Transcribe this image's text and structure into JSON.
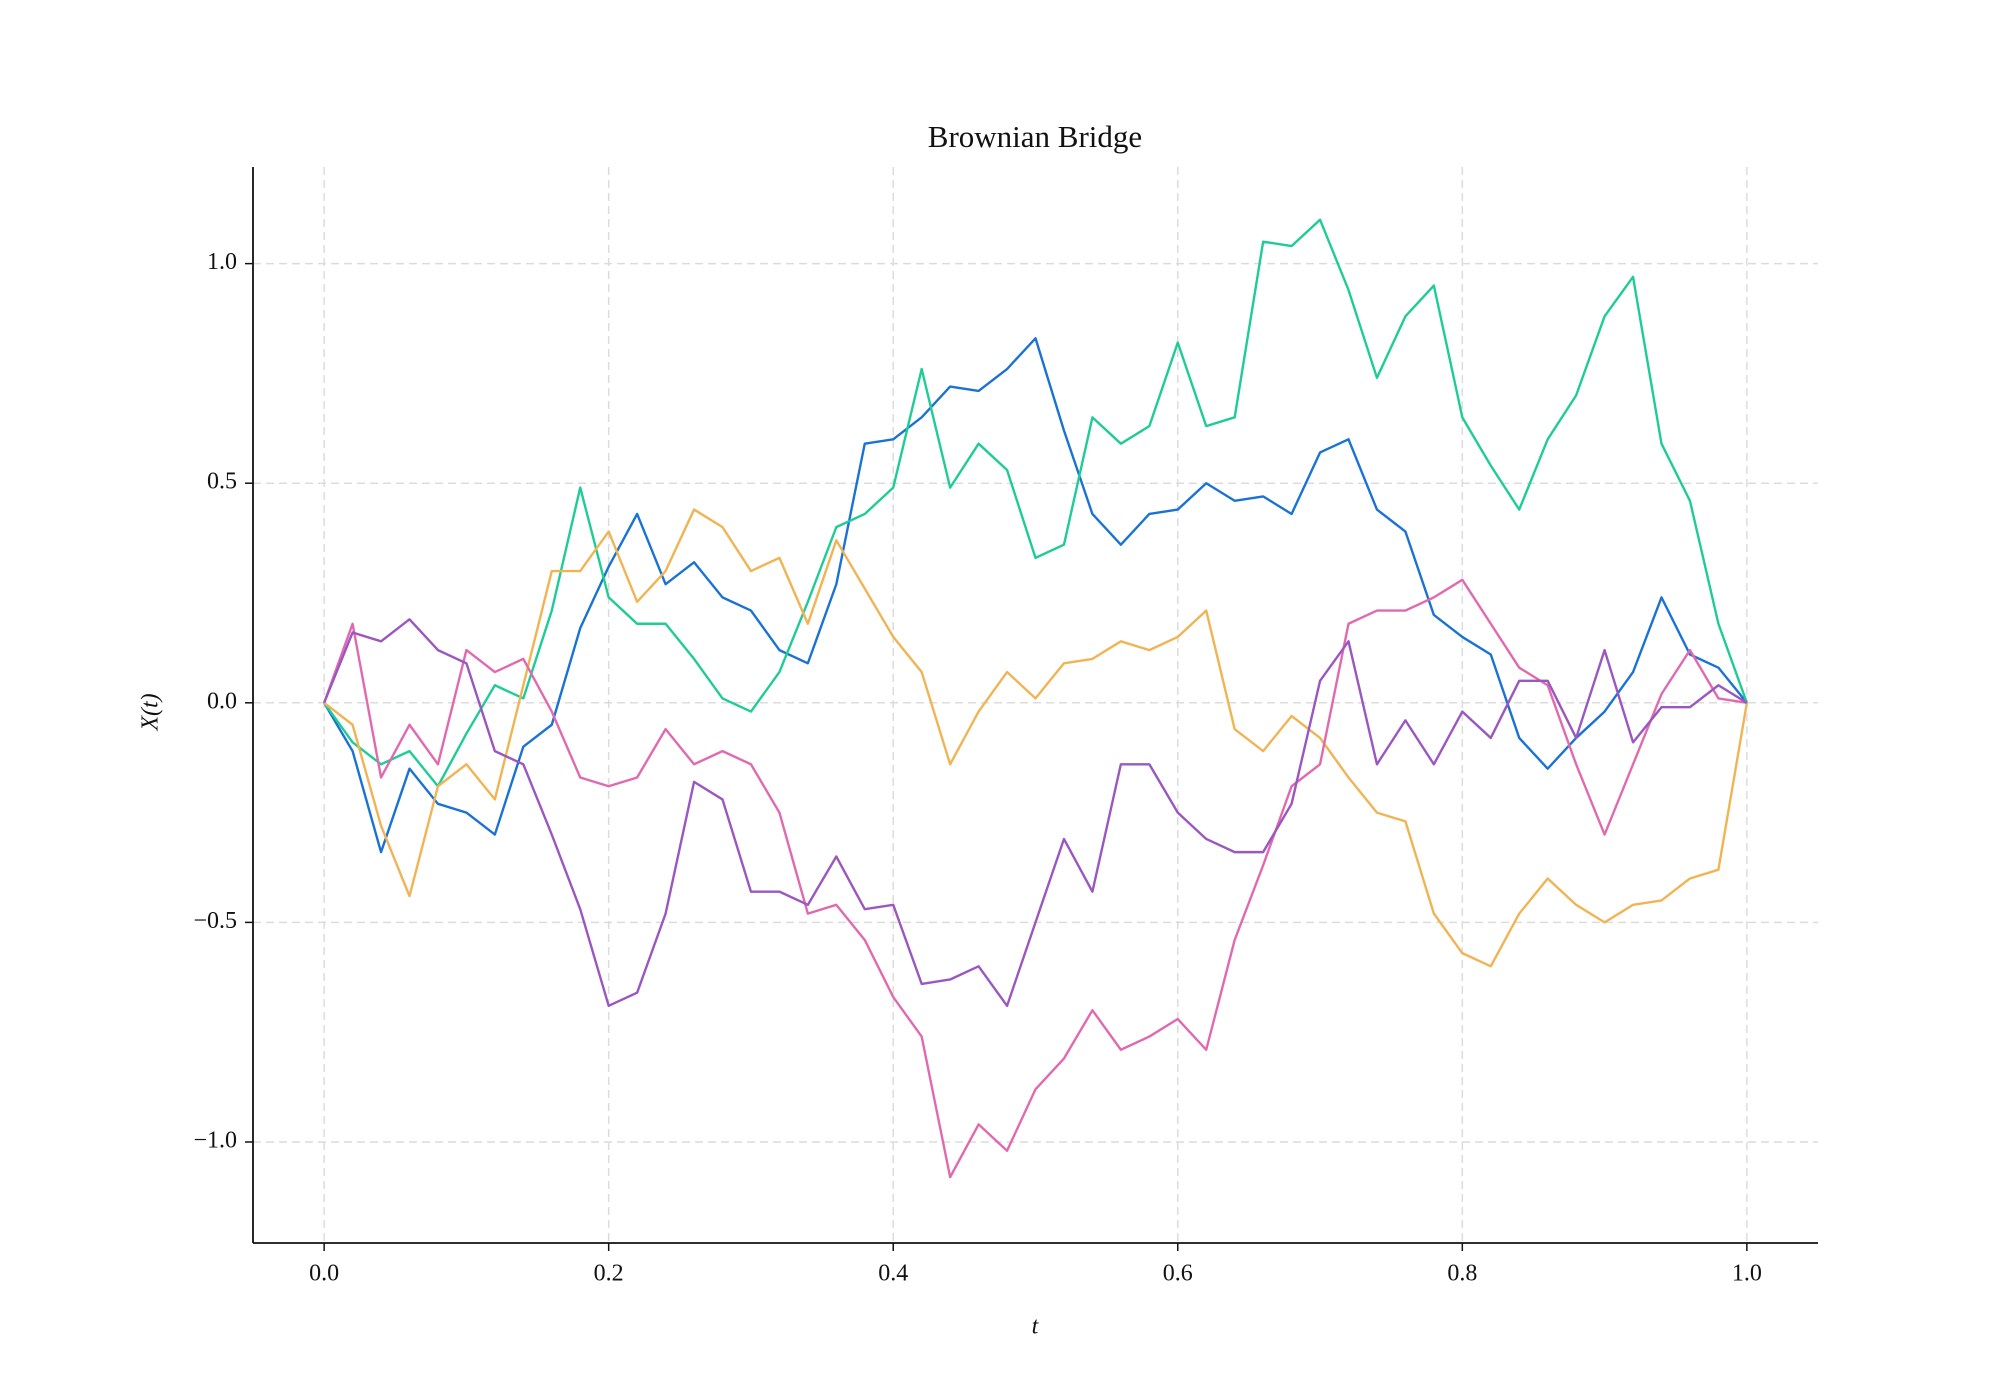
{
  "chart_data": {
    "type": "line",
    "title": "Brownian Bridge",
    "xlabel": "t",
    "ylabel": "X(t)",
    "x": [
      0,
      0.02,
      0.04,
      0.06,
      0.08,
      0.1,
      0.12,
      0.14,
      0.16,
      0.18,
      0.2,
      0.22,
      0.24,
      0.26,
      0.28,
      0.3,
      0.32,
      0.34,
      0.36,
      0.38,
      0.4,
      0.42,
      0.44,
      0.46,
      0.48,
      0.5,
      0.52,
      0.54,
      0.56,
      0.58,
      0.6,
      0.62,
      0.64,
      0.66,
      0.68,
      0.7,
      0.72,
      0.74,
      0.76,
      0.78,
      0.8,
      0.82,
      0.84,
      0.86,
      0.88,
      0.9,
      0.92,
      0.94,
      0.96,
      0.98,
      1
    ],
    "series": [
      {
        "color": "#1a73d4",
        "values": [
          0,
          -0.11,
          -0.34,
          -0.15,
          -0.23,
          -0.25,
          -0.3,
          -0.1,
          -0.05,
          0.17,
          0.31,
          0.43,
          0.27,
          0.32,
          0.24,
          0.21,
          0.12,
          0.09,
          0.27,
          0.59,
          0.6,
          0.65,
          0.72,
          0.71,
          0.76,
          0.83,
          0.62,
          0.43,
          0.36,
          0.43,
          0.44,
          0.5,
          0.46,
          0.47,
          0.43,
          0.57,
          0.6,
          0.44,
          0.39,
          0.2,
          0.15,
          0.11,
          -0.08,
          -0.15,
          -0.08,
          -0.02,
          0.07,
          0.24,
          0.11,
          0.08,
          0
        ]
      },
      {
        "color": "#1fcc96",
        "values": [
          0,
          -0.09,
          -0.14,
          -0.11,
          -0.19,
          -0.07,
          0.04,
          0.01,
          0.21,
          0.49,
          0.24,
          0.18,
          0.18,
          0.1,
          0.01,
          -0.02,
          0.07,
          0.23,
          0.4,
          0.43,
          0.49,
          0.76,
          0.49,
          0.59,
          0.53,
          0.33,
          0.36,
          0.65,
          0.59,
          0.63,
          0.82,
          0.63,
          0.65,
          1.05,
          1.04,
          1.1,
          0.94,
          0.74,
          0.88,
          0.95,
          0.65,
          0.54,
          0.44,
          0.6,
          0.7,
          0.88,
          0.97,
          0.59,
          0.46,
          0.18,
          0
        ]
      },
      {
        "color": "#f0b454",
        "values": [
          0,
          -0.05,
          -0.28,
          -0.44,
          -0.19,
          -0.14,
          -0.22,
          0.04,
          0.3,
          0.3,
          0.39,
          0.23,
          0.3,
          0.44,
          0.4,
          0.3,
          0.33,
          0.18,
          0.37,
          0.26,
          0.15,
          0.07,
          -0.14,
          -0.02,
          0.07,
          0.01,
          0.09,
          0.1,
          0.14,
          0.12,
          0.15,
          0.21,
          -0.06,
          -0.11,
          -0.03,
          -0.08,
          -0.17,
          -0.25,
          -0.27,
          -0.48,
          -0.57,
          -0.6,
          -0.48,
          -0.4,
          -0.46,
          -0.5,
          -0.46,
          -0.45,
          -0.4,
          -0.38,
          0
        ]
      },
      {
        "color": "#e06aaf",
        "values": [
          0,
          0.18,
          -0.17,
          -0.05,
          -0.14,
          0.12,
          0.07,
          0.1,
          -0.02,
          -0.17,
          -0.19,
          -0.17,
          -0.06,
          -0.14,
          -0.11,
          -0.14,
          -0.25,
          -0.48,
          -0.46,
          -0.54,
          -0.67,
          -0.76,
          -1.08,
          -0.96,
          -1.02,
          -0.88,
          -0.81,
          -0.7,
          -0.79,
          -0.76,
          -0.72,
          -0.79,
          -0.54,
          -0.37,
          -0.19,
          -0.14,
          0.18,
          0.21,
          0.21,
          0.24,
          0.28,
          0.18,
          0.08,
          0.04,
          -0.14,
          -0.3,
          -0.14,
          0.02,
          0.12,
          0.01,
          0
        ]
      },
      {
        "color": "#9a57c0",
        "values": [
          0,
          0.16,
          0.14,
          0.19,
          0.12,
          0.09,
          -0.11,
          -0.14,
          -0.3,
          -0.47,
          -0.69,
          -0.66,
          -0.48,
          -0.18,
          -0.22,
          -0.43,
          -0.43,
          -0.46,
          -0.35,
          -0.47,
          -0.46,
          -0.64,
          -0.63,
          -0.6,
          -0.69,
          -0.5,
          -0.31,
          -0.43,
          -0.14,
          -0.14,
          -0.25,
          -0.31,
          -0.34,
          -0.34,
          -0.23,
          0.05,
          0.14,
          -0.14,
          -0.04,
          -0.14,
          -0.02,
          -0.08,
          0.05,
          0.05,
          -0.08,
          0.12,
          -0.09,
          -0.01,
          -0.01,
          0.04,
          0
        ]
      }
    ],
    "xlim": [
      -0.05,
      1.05
    ],
    "ylim": [
      -1.23,
      1.22
    ],
    "xticks": [
      {
        "value": 0,
        "label": "0.0"
      },
      0.2,
      0.4,
      0.6,
      0.8,
      {
        "value": 1,
        "label": "1.0"
      }
    ],
    "yticks": [
      {
        "value": -1,
        "label": "−1.0"
      },
      {
        "value": -0.5,
        "label": "−0.5"
      },
      {
        "value": 0,
        "label": "0.0"
      },
      0.5,
      {
        "value": 1,
        "label": "1.0"
      }
    ],
    "grid": true
  }
}
